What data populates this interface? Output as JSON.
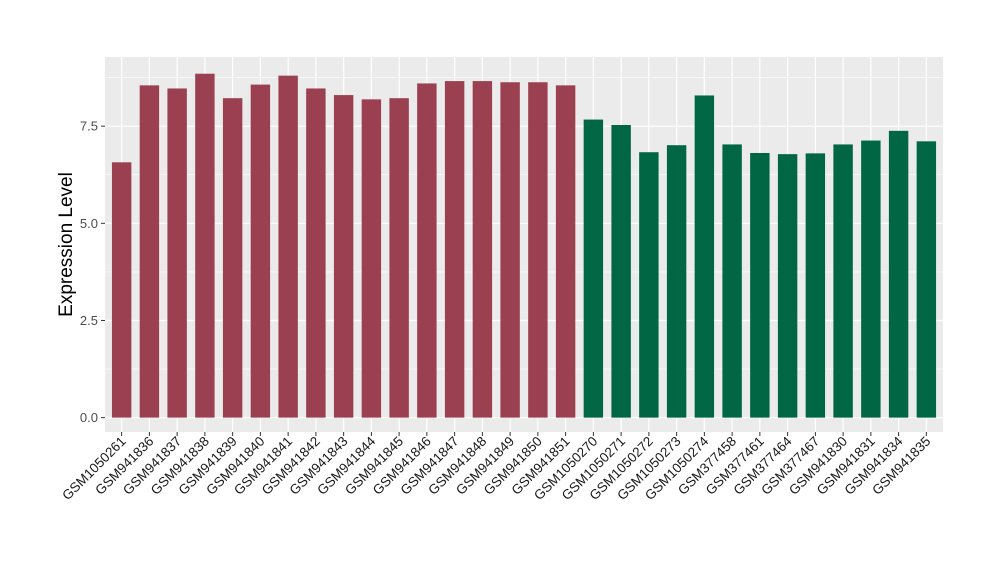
{
  "chart_data": {
    "type": "bar",
    "title": "",
    "xlabel": "",
    "ylabel": "Expression Level",
    "ylim": [
      -0.37,
      9.28
    ],
    "yticks": [
      0.0,
      2.5,
      5.0,
      7.5
    ],
    "ytick_labels": [
      "0.0",
      "2.5",
      "5.0",
      "7.5"
    ],
    "grid": true,
    "legend": "none",
    "colors": {
      "group1": "#9a4050",
      "group2": "#006644",
      "panel": "#ebebeb",
      "grid": "#ffffff"
    },
    "categories": [
      "GSM1050261",
      "GSM941836",
      "GSM941837",
      "GSM941838",
      "GSM941839",
      "GSM941840",
      "GSM941841",
      "GSM941842",
      "GSM941843",
      "GSM941844",
      "GSM941845",
      "GSM941846",
      "GSM941847",
      "GSM941848",
      "GSM941849",
      "GSM941850",
      "GSM941851",
      "GSM1050270",
      "GSM1050271",
      "GSM1050272",
      "GSM1050273",
      "GSM1050274",
      "GSM377458",
      "GSM377461",
      "GSM377464",
      "GSM377467",
      "GSM941830",
      "GSM941831",
      "GSM941834",
      "GSM941835"
    ],
    "values": [
      6.57,
      8.55,
      8.47,
      8.85,
      8.22,
      8.57,
      8.8,
      8.47,
      8.3,
      8.19,
      8.22,
      8.6,
      8.66,
      8.66,
      8.63,
      8.63,
      8.55,
      7.67,
      7.53,
      6.83,
      7.01,
      8.29,
      7.03,
      6.81,
      6.78,
      6.8,
      7.03,
      7.13,
      7.38,
      7.11
    ],
    "groups": [
      1,
      1,
      1,
      1,
      1,
      1,
      1,
      1,
      1,
      1,
      1,
      1,
      1,
      1,
      1,
      1,
      1,
      2,
      2,
      2,
      2,
      2,
      2,
      2,
      2,
      2,
      2,
      2,
      2,
      2
    ]
  }
}
